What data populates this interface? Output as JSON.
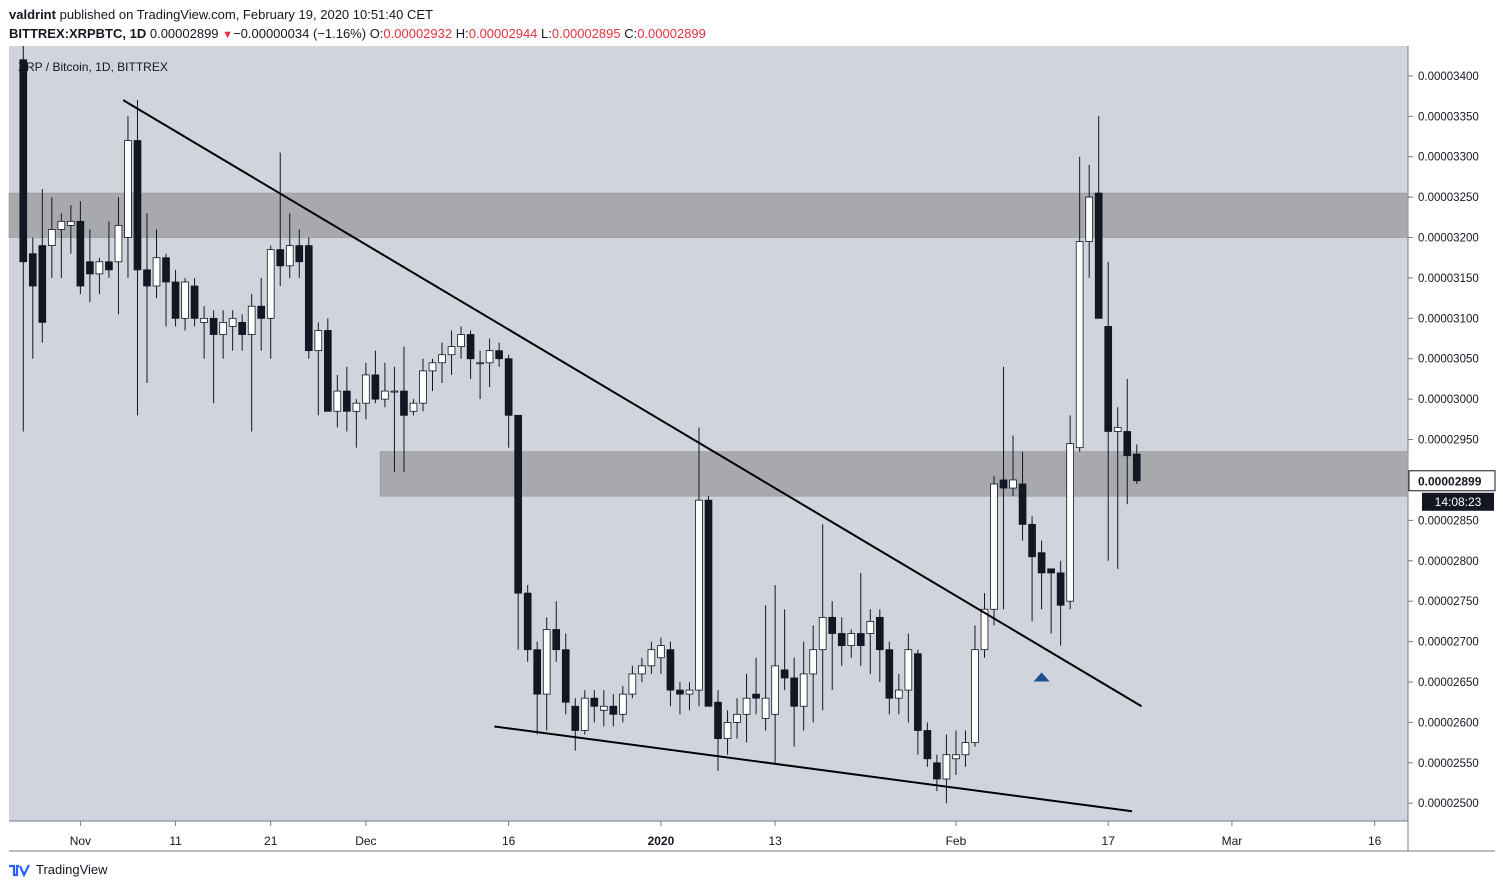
{
  "header": {
    "author": "valdrint",
    "published_text": "published on TradingView.com, February 19, 2020 10:51:40 CET",
    "symbol": "BITTREX:XRPBTC, 1D",
    "last": "0.00002899",
    "change_arrow": "▼",
    "change": "−0.00000034 (−1.16%)",
    "o_label": "O:",
    "o_value": "0.00002932",
    "h_label": "H:",
    "h_value": "0.00002944",
    "l_label": "L:",
    "l_value": "0.00002895",
    "c_label": "C:",
    "c_value": "0.00002899"
  },
  "chart_title": "XRP / Bitcoin, 1D, BITTREX",
  "footer": {
    "brand": "TradingView",
    "logo_icon": "tradingview-logo-icon"
  },
  "colors": {
    "plot_bg": "#d1d4dc",
    "zone": "#a7a9ad",
    "candle_up": "#ffffff",
    "candle_down": "#131722",
    "trendline": "#000000",
    "marker": "#1e4f8f",
    "price_label_bg": "#ffffff",
    "timer_bg": "#131722"
  },
  "chart_data": {
    "type": "candlestick",
    "y_ticks": [
      "0.00003400",
      "0.00003350",
      "0.00003300",
      "0.00003250",
      "0.00003200",
      "0.00003150",
      "0.00003100",
      "0.00003050",
      "0.00003000",
      "0.00002950",
      "0.00002900",
      "0.00002850",
      "0.00002800",
      "0.00002750",
      "0.00002700",
      "0.00002650",
      "0.00002600",
      "0.00002550",
      "0.00002500"
    ],
    "y_range": [
      2.478e-05,
      3.437e-05
    ],
    "x_ticks": [
      {
        "label": "Nov",
        "day": "2019-11-01"
      },
      {
        "label": "11",
        "day": "2019-11-11"
      },
      {
        "label": "21",
        "day": "2019-11-21"
      },
      {
        "label": "Dec",
        "day": "2019-12-01"
      },
      {
        "label": "16",
        "day": "2019-12-16"
      },
      {
        "label": "2020",
        "day": "2020-01-01"
      },
      {
        "label": "13",
        "day": "2020-01-13"
      },
      {
        "label": "Feb",
        "day": "2020-02-01"
      },
      {
        "label": "17",
        "day": "2020-02-17"
      },
      {
        "label": "Mar",
        "day": "2020-03-01"
      },
      {
        "label": "16",
        "day": "2020-03-16"
      }
    ],
    "x_range_days": [
      "2019-10-25",
      "2020-03-20"
    ],
    "current_price_label": "0.00002899",
    "countdown_label": "14:08:23",
    "zones": [
      {
        "start": "2019-10-25",
        "end": "2020-03-20",
        "low": 3.2e-05,
        "high": 3.255e-05
      },
      {
        "start": "2019-12-03",
        "end": "2020-03-20",
        "low": 2.88e-05,
        "high": 2.935e-05
      }
    ],
    "trendlines": [
      {
        "start": [
          "2019-11-06",
          3.37e-05
        ],
        "end": [
          "2020-02-21",
          2.62e-05
        ]
      },
      {
        "start": [
          "2019-12-15",
          2.595e-05
        ],
        "end": [
          "2020-02-20",
          2.49e-05
        ]
      }
    ],
    "marker": {
      "day": "2020-02-10",
      "price": 2.658e-05
    },
    "candles": [
      {
        "d": "2019-10-26",
        "o": 3.42e-05,
        "h": 3.49e-05,
        "l": 2.96e-05,
        "c": 3.17e-05
      },
      {
        "d": "2019-10-27",
        "o": 3.18e-05,
        "h": 3.2e-05,
        "l": 3.05e-05,
        "c": 3.14e-05
      },
      {
        "d": "2019-10-28",
        "o": 3.19e-05,
        "h": 3.26e-05,
        "l": 3.07e-05,
        "c": 3.095e-05
      },
      {
        "d": "2019-10-29",
        "o": 3.19e-05,
        "h": 3.25e-05,
        "l": 3.15e-05,
        "c": 3.21e-05
      },
      {
        "d": "2019-10-30",
        "o": 3.21e-05,
        "h": 3.23e-05,
        "l": 3.15e-05,
        "c": 3.22e-05
      },
      {
        "d": "2019-10-31",
        "o": 3.215e-05,
        "h": 3.24e-05,
        "l": 3.18e-05,
        "c": 3.22e-05
      },
      {
        "d": "2019-11-01",
        "o": 3.22e-05,
        "h": 3.245e-05,
        "l": 3.13e-05,
        "c": 3.14e-05
      },
      {
        "d": "2019-11-02",
        "o": 3.17e-05,
        "h": 3.21e-05,
        "l": 3.12e-05,
        "c": 3.155e-05
      },
      {
        "d": "2019-11-03",
        "o": 3.155e-05,
        "h": 3.175e-05,
        "l": 3.13e-05,
        "c": 3.17e-05
      },
      {
        "d": "2019-11-04",
        "o": 3.17e-05,
        "h": 3.22e-05,
        "l": 3.15e-05,
        "c": 3.16e-05
      },
      {
        "d": "2019-11-05",
        "o": 3.17e-05,
        "h": 3.25e-05,
        "l": 3.105e-05,
        "c": 3.215e-05
      },
      {
        "d": "2019-11-06",
        "o": 3.2e-05,
        "h": 3.35e-05,
        "l": 3.15e-05,
        "c": 3.32e-05
      },
      {
        "d": "2019-11-07",
        "o": 3.32e-05,
        "h": 3.37e-05,
        "l": 2.98e-05,
        "c": 3.16e-05
      },
      {
        "d": "2019-11-08",
        "o": 3.16e-05,
        "h": 3.23e-05,
        "l": 3.02e-05,
        "c": 3.14e-05
      },
      {
        "d": "2019-11-09",
        "o": 3.14e-05,
        "h": 3.21e-05,
        "l": 3.125e-05,
        "c": 3.175e-05
      },
      {
        "d": "2019-11-10",
        "o": 3.175e-05,
        "h": 3.18e-05,
        "l": 3.09e-05,
        "c": 3.145e-05
      },
      {
        "d": "2019-11-11",
        "o": 3.145e-05,
        "h": 3.16e-05,
        "l": 3.09e-05,
        "c": 3.1e-05
      },
      {
        "d": "2019-11-12",
        "o": 3.1e-05,
        "h": 3.15e-05,
        "l": 3.085e-05,
        "c": 3.145e-05
      },
      {
        "d": "2019-11-13",
        "o": 3.14e-05,
        "h": 3.15e-05,
        "l": 3.09e-05,
        "c": 3.1e-05
      },
      {
        "d": "2019-11-14",
        "o": 3.095e-05,
        "h": 3.115e-05,
        "l": 3.05e-05,
        "c": 3.1e-05
      },
      {
        "d": "2019-11-15",
        "o": 3.1e-05,
        "h": 3.11e-05,
        "l": 2.995e-05,
        "c": 3.08e-05
      },
      {
        "d": "2019-11-16",
        "o": 3.08e-05,
        "h": 3.11e-05,
        "l": 3.05e-05,
        "c": 3.095e-05
      },
      {
        "d": "2019-11-17",
        "o": 3.09e-05,
        "h": 3.11e-05,
        "l": 3.06e-05,
        "c": 3.1e-05
      },
      {
        "d": "2019-11-18",
        "o": 3.095e-05,
        "h": 3.105e-05,
        "l": 3.06e-05,
        "c": 3.08e-05
      },
      {
        "d": "2019-11-19",
        "o": 3.08e-05,
        "h": 3.13e-05,
        "l": 2.96e-05,
        "c": 3.115e-05
      },
      {
        "d": "2019-11-20",
        "o": 3.115e-05,
        "h": 3.15e-05,
        "l": 3.06e-05,
        "c": 3.1e-05
      },
      {
        "d": "2019-11-21",
        "o": 3.1e-05,
        "h": 3.19e-05,
        "l": 3.05e-05,
        "c": 3.185e-05
      },
      {
        "d": "2019-11-22",
        "o": 3.185e-05,
        "h": 3.305e-05,
        "l": 3.14e-05,
        "c": 3.165e-05
      },
      {
        "d": "2019-11-23",
        "o": 3.165e-05,
        "h": 3.23e-05,
        "l": 3.15e-05,
        "c": 3.19e-05
      },
      {
        "d": "2019-11-24",
        "o": 3.19e-05,
        "h": 3.21e-05,
        "l": 3.15e-05,
        "c": 3.17e-05
      },
      {
        "d": "2019-11-25",
        "o": 3.19e-05,
        "h": 3.2e-05,
        "l": 3.05e-05,
        "c": 3.06e-05
      },
      {
        "d": "2019-11-26",
        "o": 3.06e-05,
        "h": 3.095e-05,
        "l": 2.98e-05,
        "c": 3.085e-05
      },
      {
        "d": "2019-11-27",
        "o": 3.085e-05,
        "h": 3.1e-05,
        "l": 2.99e-05,
        "c": 2.985e-05
      },
      {
        "d": "2019-11-28",
        "o": 2.985e-05,
        "h": 3.03e-05,
        "l": 2.965e-05,
        "c": 3.01e-05
      },
      {
        "d": "2019-11-29",
        "o": 3.01e-05,
        "h": 3.04e-05,
        "l": 2.96e-05,
        "c": 2.985e-05
      },
      {
        "d": "2019-11-30",
        "o": 2.985e-05,
        "h": 3e-05,
        "l": 2.94e-05,
        "c": 2.995e-05
      },
      {
        "d": "2019-12-01",
        "o": 2.995e-05,
        "h": 3.045e-05,
        "l": 2.975e-05,
        "c": 3.03e-05
      },
      {
        "d": "2019-12-02",
        "o": 3.03e-05,
        "h": 3.06e-05,
        "l": 2.995e-05,
        "c": 3e-05
      },
      {
        "d": "2019-12-03",
        "o": 3e-05,
        "h": 3.045e-05,
        "l": 2.99e-05,
        "c": 3.01e-05
      },
      {
        "d": "2019-12-04",
        "o": 3.01e-05,
        "h": 3.04e-05,
        "l": 2.91e-05,
        "c": 3.01e-05
      },
      {
        "d": "2019-12-05",
        "o": 3.01e-05,
        "h": 3.065e-05,
        "l": 2.91e-05,
        "c": 2.98e-05
      },
      {
        "d": "2019-12-06",
        "o": 2.985e-05,
        "h": 3e-05,
        "l": 2.98e-05,
        "c": 2.995e-05
      },
      {
        "d": "2019-12-07",
        "o": 2.995e-05,
        "h": 3.05e-05,
        "l": 2.985e-05,
        "c": 3.035e-05
      },
      {
        "d": "2019-12-08",
        "o": 3.035e-05,
        "h": 3.05e-05,
        "l": 3.01e-05,
        "c": 3.045e-05
      },
      {
        "d": "2019-12-09",
        "o": 3.045e-05,
        "h": 3.07e-05,
        "l": 3.02e-05,
        "c": 3.055e-05
      },
      {
        "d": "2019-12-10",
        "o": 3.055e-05,
        "h": 3.085e-05,
        "l": 3.03e-05,
        "c": 3.065e-05
      },
      {
        "d": "2019-12-11",
        "o": 3.065e-05,
        "h": 3.09e-05,
        "l": 3.05e-05,
        "c": 3.08e-05
      },
      {
        "d": "2019-12-12",
        "o": 3.08e-05,
        "h": 3.085e-05,
        "l": 3.025e-05,
        "c": 3.05e-05
      },
      {
        "d": "2019-12-13",
        "o": 3.045e-05,
        "h": 3.06e-05,
        "l": 3e-05,
        "c": 3.045e-05
      },
      {
        "d": "2019-12-14",
        "o": 3.045e-05,
        "h": 3.075e-05,
        "l": 3.015e-05,
        "c": 3.06e-05
      },
      {
        "d": "2019-12-15",
        "o": 3.06e-05,
        "h": 3.07e-05,
        "l": 3.04e-05,
        "c": 3.05e-05
      },
      {
        "d": "2019-12-16",
        "o": 3.05e-05,
        "h": 3.055e-05,
        "l": 2.94e-05,
        "c": 2.98e-05
      },
      {
        "d": "2019-12-17",
        "o": 2.98e-05,
        "h": 2.98e-05,
        "l": 2.69e-05,
        "c": 2.76e-05
      },
      {
        "d": "2019-12-18",
        "o": 2.76e-05,
        "h": 2.77e-05,
        "l": 2.675e-05,
        "c": 2.69e-05
      },
      {
        "d": "2019-12-19",
        "o": 2.69e-05,
        "h": 2.7e-05,
        "l": 2.585e-05,
        "c": 2.635e-05
      },
      {
        "d": "2019-12-20",
        "o": 2.635e-05,
        "h": 2.73e-05,
        "l": 2.59e-05,
        "c": 2.715e-05
      },
      {
        "d": "2019-12-21",
        "o": 2.715e-05,
        "h": 2.75e-05,
        "l": 2.675e-05,
        "c": 2.69e-05
      },
      {
        "d": "2019-12-22",
        "o": 2.69e-05,
        "h": 2.71e-05,
        "l": 2.61e-05,
        "c": 2.625e-05
      },
      {
        "d": "2019-12-23",
        "o": 2.62e-05,
        "h": 2.63e-05,
        "l": 2.565e-05,
        "c": 2.59e-05
      },
      {
        "d": "2019-12-24",
        "o": 2.59e-05,
        "h": 2.64e-05,
        "l": 2.585e-05,
        "c": 2.63e-05
      },
      {
        "d": "2019-12-25",
        "o": 2.63e-05,
        "h": 2.64e-05,
        "l": 2.6e-05,
        "c": 2.62e-05
      },
      {
        "d": "2019-12-26",
        "o": 2.615e-05,
        "h": 2.64e-05,
        "l": 2.595e-05,
        "c": 2.62e-05
      },
      {
        "d": "2019-12-27",
        "o": 2.62e-05,
        "h": 2.635e-05,
        "l": 2.595e-05,
        "c": 2.61e-05
      },
      {
        "d": "2019-12-28",
        "o": 2.61e-05,
        "h": 2.645e-05,
        "l": 2.6e-05,
        "c": 2.635e-05
      },
      {
        "d": "2019-12-29",
        "o": 2.635e-05,
        "h": 2.67e-05,
        "l": 2.63e-05,
        "c": 2.66e-05
      },
      {
        "d": "2019-12-30",
        "o": 2.66e-05,
        "h": 2.68e-05,
        "l": 2.65e-05,
        "c": 2.67e-05
      },
      {
        "d": "2019-12-31",
        "o": 2.67e-05,
        "h": 2.7e-05,
        "l": 2.66e-05,
        "c": 2.69e-05
      },
      {
        "d": "2020-01-01",
        "o": 2.68e-05,
        "h": 2.705e-05,
        "l": 2.66e-05,
        "c": 2.695e-05
      },
      {
        "d": "2020-01-02",
        "o": 2.69e-05,
        "h": 2.7e-05,
        "l": 2.62e-05,
        "c": 2.64e-05
      },
      {
        "d": "2020-01-03",
        "o": 2.64e-05,
        "h": 2.65e-05,
        "l": 2.61e-05,
        "c": 2.635e-05
      },
      {
        "d": "2020-01-04",
        "o": 2.635e-05,
        "h": 2.65e-05,
        "l": 2.615e-05,
        "c": 2.64e-05
      },
      {
        "d": "2020-01-05",
        "o": 2.64e-05,
        "h": 2.965e-05,
        "l": 2.62e-05,
        "c": 2.875e-05
      },
      {
        "d": "2020-01-06",
        "o": 2.875e-05,
        "h": 2.88e-05,
        "l": 2.62e-05,
        "c": 2.62e-05
      },
      {
        "d": "2020-01-07",
        "o": 2.625e-05,
        "h": 2.64e-05,
        "l": 2.54e-05,
        "c": 2.58e-05
      },
      {
        "d": "2020-01-08",
        "o": 2.58e-05,
        "h": 2.615e-05,
        "l": 2.56e-05,
        "c": 2.6e-05
      },
      {
        "d": "2020-01-09",
        "o": 2.6e-05,
        "h": 2.63e-05,
        "l": 2.58e-05,
        "c": 2.61e-05
      },
      {
        "d": "2020-01-10",
        "o": 2.61e-05,
        "h": 2.66e-05,
        "l": 2.575e-05,
        "c": 2.63e-05
      },
      {
        "d": "2020-01-11",
        "o": 2.635e-05,
        "h": 2.68e-05,
        "l": 2.61e-05,
        "c": 2.63e-05
      },
      {
        "d": "2020-01-12",
        "o": 2.605e-05,
        "h": 2.745e-05,
        "l": 2.59e-05,
        "c": 2.63e-05
      },
      {
        "d": "2020-01-13",
        "o": 2.61e-05,
        "h": 2.77e-05,
        "l": 2.55e-05,
        "c": 2.67e-05
      },
      {
        "d": "2020-01-14",
        "o": 2.665e-05,
        "h": 2.74e-05,
        "l": 2.64e-05,
        "c": 2.655e-05
      },
      {
        "d": "2020-01-15",
        "o": 2.655e-05,
        "h": 2.68e-05,
        "l": 2.57e-05,
        "c": 2.62e-05
      },
      {
        "d": "2020-01-16",
        "o": 2.62e-05,
        "h": 2.7e-05,
        "l": 2.59e-05,
        "c": 2.66e-05
      },
      {
        "d": "2020-01-17",
        "o": 2.66e-05,
        "h": 2.72e-05,
        "l": 2.6e-05,
        "c": 2.69e-05
      },
      {
        "d": "2020-01-18",
        "o": 2.69e-05,
        "h": 2.845e-05,
        "l": 2.615e-05,
        "c": 2.73e-05
      },
      {
        "d": "2020-01-19",
        "o": 2.73e-05,
        "h": 2.75e-05,
        "l": 2.64e-05,
        "c": 2.71e-05
      },
      {
        "d": "2020-01-20",
        "o": 2.71e-05,
        "h": 2.73e-05,
        "l": 2.67e-05,
        "c": 2.695e-05
      },
      {
        "d": "2020-01-21",
        "o": 2.695e-05,
        "h": 2.715e-05,
        "l": 2.68e-05,
        "c": 2.71e-05
      },
      {
        "d": "2020-01-22",
        "o": 2.71e-05,
        "h": 2.785e-05,
        "l": 2.67e-05,
        "c": 2.695e-05
      },
      {
        "d": "2020-01-23",
        "o": 2.71e-05,
        "h": 2.74e-05,
        "l": 2.66e-05,
        "c": 2.725e-05
      },
      {
        "d": "2020-01-24",
        "o": 2.73e-05,
        "h": 2.74e-05,
        "l": 2.65e-05,
        "c": 2.69e-05
      },
      {
        "d": "2020-01-25",
        "o": 2.69e-05,
        "h": 2.7e-05,
        "l": 2.61e-05,
        "c": 2.63e-05
      },
      {
        "d": "2020-01-26",
        "o": 2.63e-05,
        "h": 2.66e-05,
        "l": 2.61e-05,
        "c": 2.64e-05
      },
      {
        "d": "2020-01-27",
        "o": 2.64e-05,
        "h": 2.71e-05,
        "l": 2.6e-05,
        "c": 2.69e-05
      },
      {
        "d": "2020-01-28",
        "o": 2.685e-05,
        "h": 2.69e-05,
        "l": 2.56e-05,
        "c": 2.59e-05
      },
      {
        "d": "2020-01-29",
        "o": 2.59e-05,
        "h": 2.6e-05,
        "l": 2.545e-05,
        "c": 2.555e-05
      },
      {
        "d": "2020-01-30",
        "o": 2.55e-05,
        "h": 2.56e-05,
        "l": 2.515e-05,
        "c": 2.53e-05
      },
      {
        "d": "2020-01-31",
        "o": 2.53e-05,
        "h": 2.585e-05,
        "l": 2.5e-05,
        "c": 2.56e-05
      },
      {
        "d": "2020-02-01",
        "o": 2.555e-05,
        "h": 2.59e-05,
        "l": 2.535e-05,
        "c": 2.56e-05
      },
      {
        "d": "2020-02-02",
        "o": 2.56e-05,
        "h": 2.59e-05,
        "l": 2.545e-05,
        "c": 2.575e-05
      },
      {
        "d": "2020-02-03",
        "o": 2.575e-05,
        "h": 2.72e-05,
        "l": 2.57e-05,
        "c": 2.69e-05
      },
      {
        "d": "2020-02-04",
        "o": 2.69e-05,
        "h": 2.76e-05,
        "l": 2.68e-05,
        "c": 2.74e-05
      },
      {
        "d": "2020-02-05",
        "o": 2.74e-05,
        "h": 2.905e-05,
        "l": 2.72e-05,
        "c": 2.895e-05
      },
      {
        "d": "2020-02-06",
        "o": 2.9e-05,
        "h": 3.04e-05,
        "l": 2.74e-05,
        "c": 2.89e-05
      },
      {
        "d": "2020-02-07",
        "o": 2.89e-05,
        "h": 2.955e-05,
        "l": 2.88e-05,
        "c": 2.9e-05
      },
      {
        "d": "2020-02-08",
        "o": 2.895e-05,
        "h": 2.935e-05,
        "l": 2.825e-05,
        "c": 2.845e-05
      },
      {
        "d": "2020-02-09",
        "o": 2.845e-05,
        "h": 2.855e-05,
        "l": 2.725e-05,
        "c": 2.805e-05
      },
      {
        "d": "2020-02-10",
        "o": 2.81e-05,
        "h": 2.825e-05,
        "l": 2.74e-05,
        "c": 2.785e-05
      },
      {
        "d": "2020-02-11",
        "o": 2.79e-05,
        "h": 2.79e-05,
        "l": 2.71e-05,
        "c": 2.785e-05
      },
      {
        "d": "2020-02-12",
        "o": 2.785e-05,
        "h": 2.8e-05,
        "l": 2.695e-05,
        "c": 2.745e-05
      },
      {
        "d": "2020-02-13",
        "o": 2.75e-05,
        "h": 2.98e-05,
        "l": 2.74e-05,
        "c": 2.945e-05
      },
      {
        "d": "2020-02-14",
        "o": 2.94e-05,
        "h": 3.3e-05,
        "l": 2.935e-05,
        "c": 3.195e-05
      },
      {
        "d": "2020-02-15",
        "o": 3.195e-05,
        "h": 3.29e-05,
        "l": 3.15e-05,
        "c": 3.25e-05
      },
      {
        "d": "2020-02-16",
        "o": 3.255e-05,
        "h": 3.35e-05,
        "l": 3.1e-05,
        "c": 3.1e-05
      },
      {
        "d": "2020-02-17",
        "o": 3.09e-05,
        "h": 3.17e-05,
        "l": 2.8e-05,
        "c": 2.96e-05
      },
      {
        "d": "2020-02-18",
        "o": 2.96e-05,
        "h": 2.99e-05,
        "l": 2.79e-05,
        "c": 2.965e-05
      },
      {
        "d": "2020-02-19",
        "o": 2.96e-05,
        "h": 3.025e-05,
        "l": 2.87e-05,
        "c": 2.93e-05
      },
      {
        "d": "2020-02-20",
        "o": 2.932e-05,
        "h": 2.944e-05,
        "l": 2.895e-05,
        "c": 2.899e-05
      }
    ]
  }
}
